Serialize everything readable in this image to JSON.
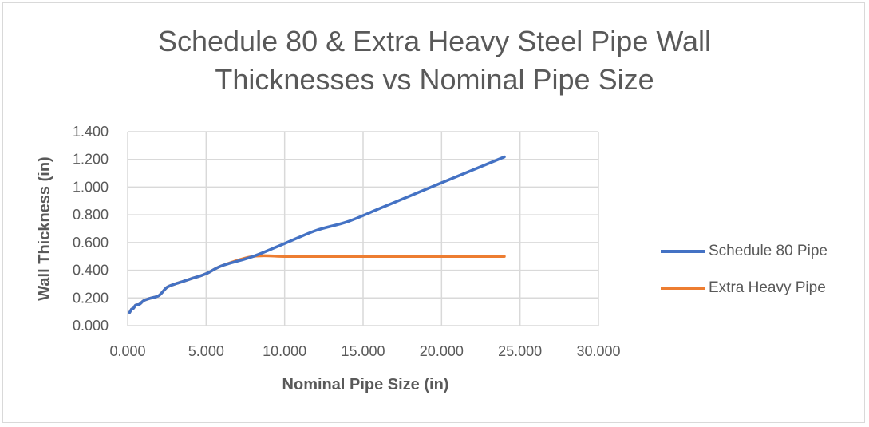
{
  "chart_data": {
    "type": "line",
    "title_line1": "Schedule 80 & Extra Heavy Steel Pipe Wall",
    "title_line2": "Thicknesses vs Nominal Pipe Size",
    "xlabel": "Nominal Pipe Size (in)",
    "ylabel": "Wall Thickness (in)",
    "xlim": [
      0,
      30
    ],
    "ylim": [
      0,
      1.4
    ],
    "x_ticks": [
      "0.000",
      "5.000",
      "10.000",
      "15.000",
      "20.000",
      "25.000",
      "30.000"
    ],
    "y_ticks": [
      "0.000",
      "0.200",
      "0.400",
      "0.600",
      "0.800",
      "1.000",
      "1.200",
      "1.400"
    ],
    "grid": true,
    "legend_position": "right",
    "series": [
      {
        "name": "Schedule 80 Pipe",
        "color": "#4472C4",
        "x": [
          0.125,
          0.25,
          0.375,
          0.5,
          0.75,
          1,
          1.25,
          1.5,
          2,
          2.5,
          3,
          3.5,
          4,
          5,
          6,
          8,
          10,
          12,
          14,
          16,
          18,
          20,
          24
        ],
        "y": [
          0.095,
          0.119,
          0.126,
          0.147,
          0.154,
          0.179,
          0.191,
          0.2,
          0.218,
          0.276,
          0.3,
          0.318,
          0.337,
          0.375,
          0.432,
          0.5,
          0.593,
          0.687,
          0.75,
          0.843,
          0.937,
          1.031,
          1.218
        ]
      },
      {
        "name": "Extra Heavy Pipe",
        "color": "#ED7D31",
        "x": [
          0.125,
          0.25,
          0.375,
          0.5,
          0.75,
          1,
          1.25,
          1.5,
          2,
          2.5,
          3,
          3.5,
          4,
          5,
          6,
          8,
          10,
          12,
          14,
          16,
          18,
          20,
          24
        ],
        "y": [
          0.095,
          0.119,
          0.126,
          0.147,
          0.154,
          0.179,
          0.191,
          0.2,
          0.218,
          0.276,
          0.3,
          0.318,
          0.337,
          0.375,
          0.432,
          0.5,
          0.5,
          0.5,
          0.5,
          0.5,
          0.5,
          0.5,
          0.5
        ]
      }
    ]
  }
}
